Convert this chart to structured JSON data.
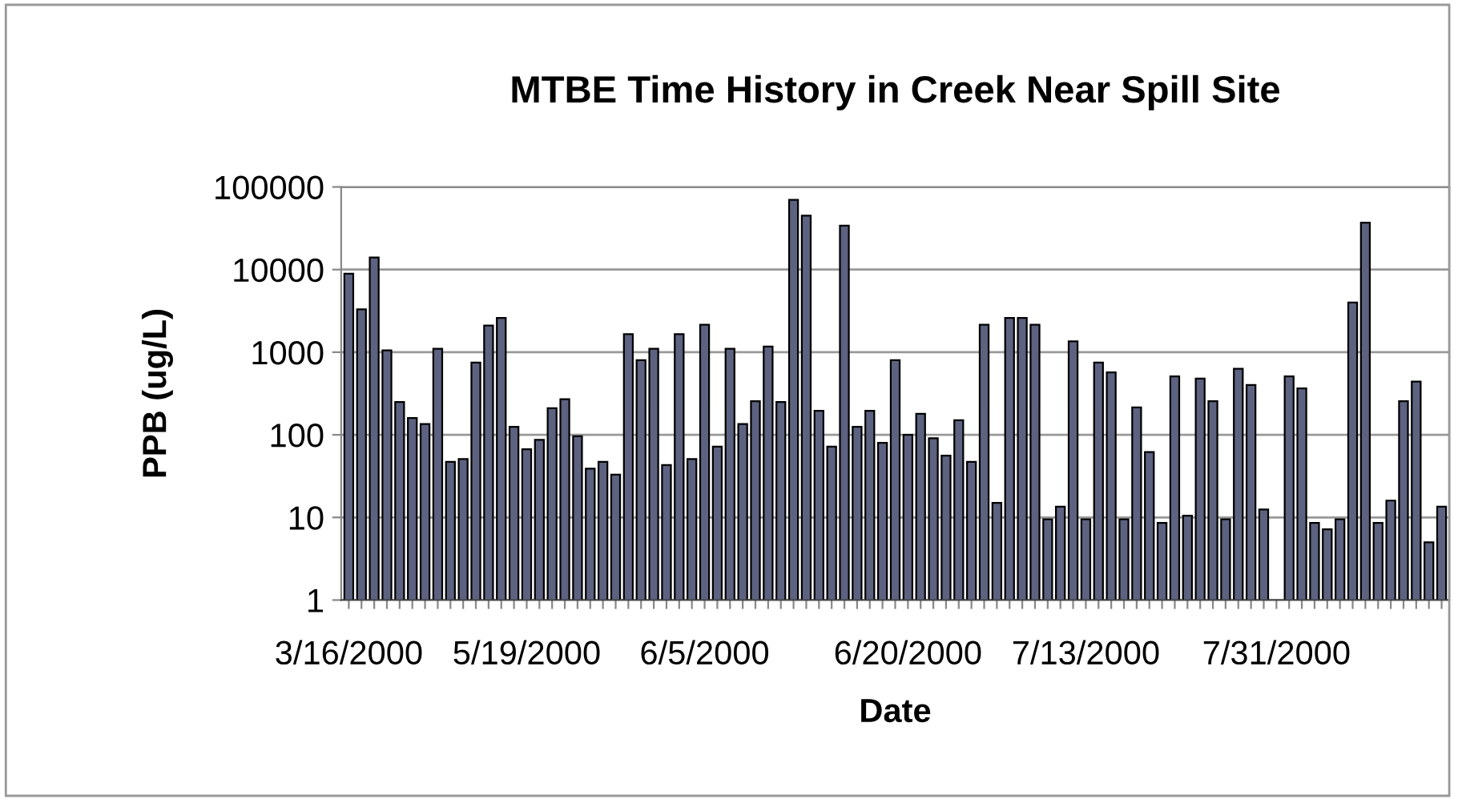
{
  "chart_data": {
    "type": "bar",
    "title": "MTBE Time History in Creek Near Spill Site",
    "xlabel": "Date",
    "ylabel": "PPB (ug/L)",
    "categories": [
      "3/16/2000",
      null,
      null,
      null,
      null,
      null,
      null,
      null,
      null,
      null,
      null,
      null,
      null,
      null,
      "5/19/2000",
      null,
      null,
      null,
      null,
      null,
      null,
      null,
      null,
      null,
      null,
      null,
      null,
      null,
      "6/5/2000",
      null,
      null,
      null,
      null,
      null,
      null,
      null,
      null,
      null,
      null,
      null,
      null,
      null,
      null,
      null,
      "6/20/2000",
      null,
      null,
      null,
      null,
      null,
      null,
      null,
      null,
      null,
      null,
      null,
      null,
      null,
      "7/13/2000",
      null,
      null,
      null,
      null,
      null,
      null,
      null,
      null,
      null,
      null,
      null,
      null,
      null,
      null,
      "7/31/2000",
      null,
      null,
      null,
      null,
      null,
      null,
      null,
      null,
      null,
      null,
      null,
      null,
      null
    ],
    "series": [
      {
        "color": "#5d6280",
        "values": [
          8900,
          3300,
          14000,
          1050,
          250,
          160,
          135,
          1100,
          47,
          51,
          750,
          2100,
          2600,
          125,
          67,
          87,
          210,
          270,
          96,
          39,
          47,
          33,
          1650,
          800,
          1100,
          43,
          1650,
          51,
          2150,
          72,
          1100,
          135,
          255,
          1170,
          250,
          70000,
          45000,
          195,
          72,
          34000,
          125,
          195,
          80,
          800,
          100,
          180,
          91,
          56,
          150,
          47,
          2150,
          15,
          2600,
          2600,
          2150,
          9.5,
          13.5,
          1350,
          9.5,
          750,
          570,
          9.5,
          215,
          62,
          8.6,
          510,
          10.5,
          480,
          255,
          9.5,
          630,
          400,
          12.5,
          null,
          510,
          365,
          8.6,
          7.2,
          9.5,
          4000,
          37000,
          8.6,
          16,
          255,
          440,
          5,
          13.5
        ]
      }
    ],
    "log": true,
    "ylim": [
      1,
      100000
    ],
    "yticks": [
      1,
      10,
      100,
      1000,
      10000,
      100000
    ],
    "grid": "y"
  }
}
